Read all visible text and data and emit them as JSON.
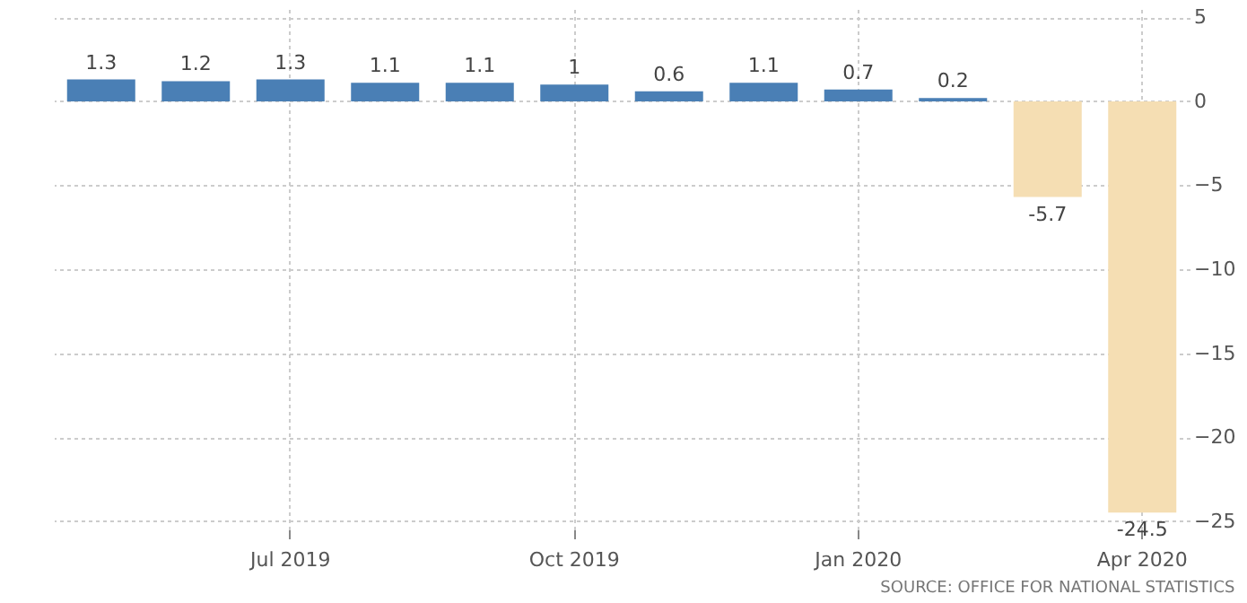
{
  "chart_data": {
    "type": "bar",
    "categories": [
      null,
      null,
      "Jul 2019",
      null,
      null,
      "Oct 2019",
      null,
      null,
      "Jan 2020",
      null,
      null,
      "Apr 2020"
    ],
    "values": [
      1.3,
      1.2,
      1.3,
      1.1,
      1.1,
      1,
      0.6,
      1.1,
      0.7,
      0.2,
      -5.7,
      -24.5
    ],
    "colors": [
      "#4a7fb5",
      "#4a7fb5",
      "#4a7fb5",
      "#4a7fb5",
      "#4a7fb5",
      "#4a7fb5",
      "#4a7fb5",
      "#4a7fb5",
      "#4a7fb5",
      "#4a7fb5",
      "#f5deb3",
      "#f5deb3"
    ],
    "ylim": [
      -25.5,
      5.5
    ],
    "yticks": [
      5,
      0,
      -5,
      -10,
      -15,
      -20,
      -25
    ],
    "grid": true,
    "data_labels": true,
    "annotations": [
      "SOURCE: OFFICE FOR NATIONAL STATISTICS"
    ]
  }
}
